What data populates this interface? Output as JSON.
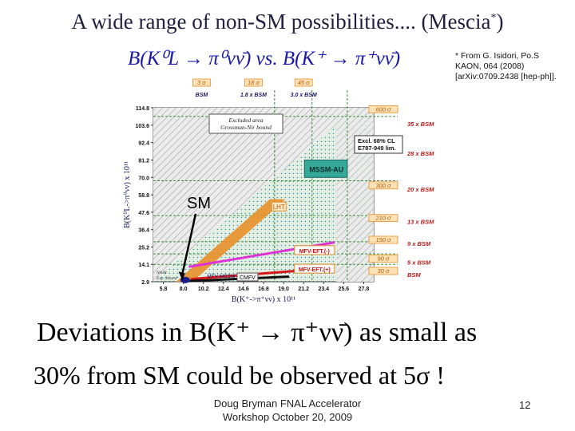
{
  "slide": {
    "title": "A wide range of non-SM possibilities.... (Mescia",
    "title_sup": "*",
    "title_close": ")",
    "subtitle": "B(K⁰L → π⁰νν̄) vs. B(K⁺ → π⁺νν̄)",
    "footnote": "* From G. Isidori, Po.S KAON, 064 (2008) [arXiv:0709.2438 [hep-ph]].",
    "sm_label": "SM",
    "line1": "Deviations in B(K⁺ → π⁺νν̄) as small as",
    "line2": "30% from SM could be observed at 5σ !",
    "footer": "Doug Bryman FNAL Accelerator Workshop October 20, 2009",
    "page_number": "12"
  },
  "chart_data": {
    "type": "scatter",
    "xlabel": "B(K⁺->π⁺νν) x 10¹¹",
    "ylabel": "B(K⁰L->π⁰νν) x 10¹¹",
    "x_ticks": [
      "5.8",
      "8.0",
      "10.2",
      "12.4",
      "14.6",
      "16.8",
      "19.0",
      "21.2",
      "23.4",
      "25.6",
      "27.8"
    ],
    "y_ticks": [
      "114.8",
      "103.6",
      "92.4",
      "81.2",
      "70.0",
      "58.8",
      "47.6",
      "36.4",
      "25.2",
      "14.1",
      "2.9"
    ],
    "xlim": [
      4.7,
      28.9
    ],
    "ylim": [
      2.9,
      114.8
    ],
    "regions": [
      {
        "name": "Excluded area Grossman-Nir bound",
        "label": "Excluded area\nGrossman-Nir bound"
      },
      {
        "name": "Excl. 68% CL E787-949 lim.",
        "label": "Excl. 68% CL\nE787-949 lim."
      },
      {
        "name": "MSSM-AU",
        "label": "MSSM-AU"
      },
      {
        "name": "LHT",
        "label": "LHT"
      },
      {
        "name": "MFV-EFT (-)",
        "label": "MFV-EFT.(-)"
      },
      {
        "name": "MFV-EFT (+)",
        "label": "MFV-EFT.(+)"
      },
      {
        "name": "MFV-MSSM",
        "label": "MFV-MSSM"
      },
      {
        "name": "CMFV",
        "label": "CMFV"
      },
      {
        "name": "NA48 Exp. Bound",
        "label": "NA48\nExp. Bound"
      }
    ],
    "top_markers": [
      {
        "sigma": "3 σ",
        "label": "BSM"
      },
      {
        "sigma": "18 σ",
        "label": "1.8 x BSM"
      },
      {
        "sigma": "45 σ",
        "label": "3.0 x BSM"
      }
    ],
    "right_markers": [
      {
        "sigma": "600 σ",
        "label": ""
      },
      {
        "sigma": "",
        "label": "35 x BSM"
      },
      {
        "sigma": "",
        "label": "28 x BSM"
      },
      {
        "sigma": "300 σ",
        "label": "20 x BSM"
      },
      {
        "sigma": "210 σ",
        "label": "13 x BSM"
      },
      {
        "sigma": "150 σ",
        "label": "9 x BSM"
      },
      {
        "sigma": "90 σ",
        "label": "5 x BSM"
      },
      {
        "sigma": "30 σ",
        "label": "BSM"
      }
    ],
    "sm_point": {
      "x": 8.0,
      "y": 2.9
    },
    "colors": {
      "orange": "#e8902a",
      "teal": "#35a89a",
      "magenta": "#e030d8",
      "red": "#d81818",
      "black": "#101010",
      "navy": "#1c1c8c"
    }
  }
}
